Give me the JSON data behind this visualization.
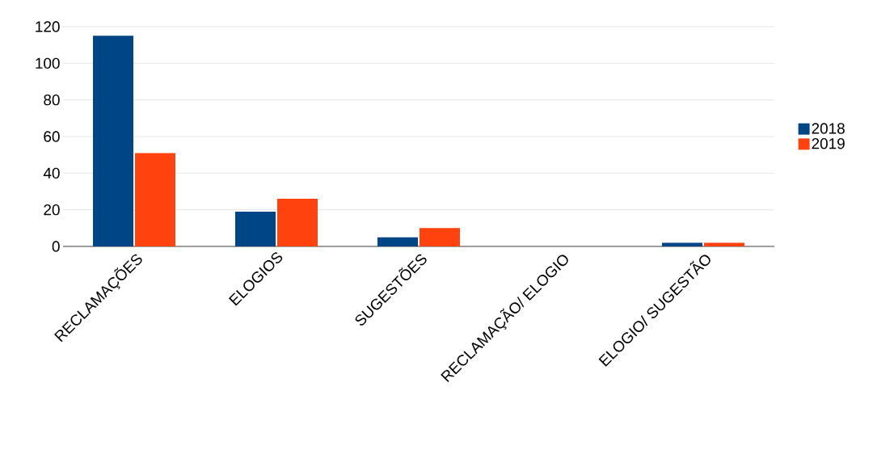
{
  "chart_data": {
    "type": "bar",
    "categories": [
      "RECLAMAÇÕES",
      "ELOGIOS",
      "SUGESTÕES",
      "RECLAMAÇÃO/ ELOGIO",
      "ELOGIO/ SUGESTÃO"
    ],
    "series": [
      {
        "name": "2018",
        "color": "#004586",
        "values": [
          115,
          19,
          5,
          0,
          2
        ]
      },
      {
        "name": "2019",
        "color": "#ff420e",
        "values": [
          51,
          26,
          10,
          0,
          2
        ]
      }
    ],
    "ylim": [
      0,
      120
    ],
    "yticks": [
      0,
      20,
      40,
      60,
      80,
      100,
      120
    ],
    "grid": "y",
    "legend": "right"
  }
}
